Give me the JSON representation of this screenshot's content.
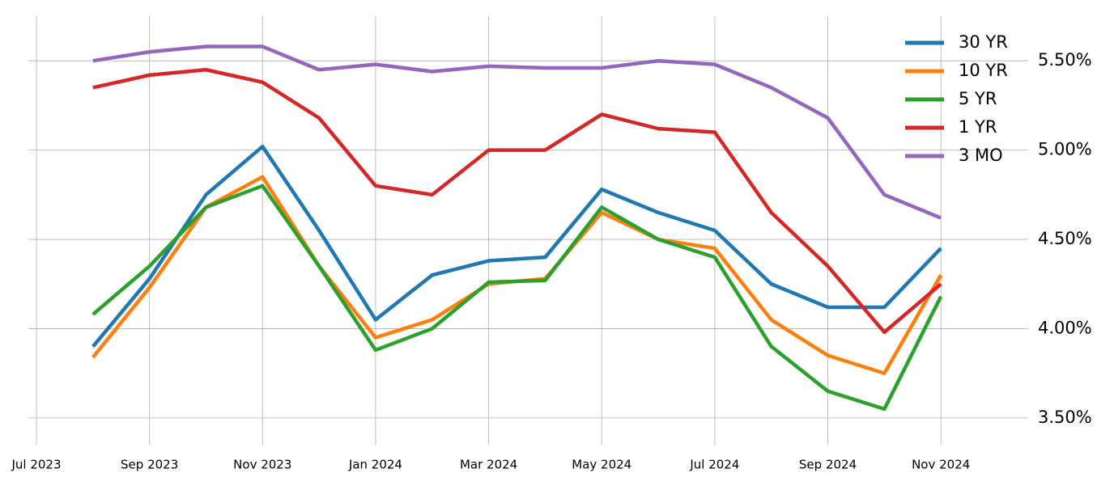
{
  "chart_data": {
    "type": "line",
    "x": [
      "2023-08",
      "2023-09",
      "2023-10",
      "2023-11",
      "2023-12",
      "2024-01",
      "2024-02",
      "2024-03",
      "2024-04",
      "2024-05",
      "2024-06",
      "2024-07",
      "2024-08",
      "2024-09",
      "2024-10",
      "2024-11"
    ],
    "series": [
      {
        "name": "30 YR",
        "color": "#1f77b4",
        "values": [
          3.9,
          4.28,
          4.75,
          5.02,
          4.55,
          4.05,
          4.3,
          4.38,
          4.4,
          4.78,
          4.65,
          4.55,
          4.25,
          4.12,
          4.12,
          4.45
        ]
      },
      {
        "name": "10 YR",
        "color": "#ff7f0e",
        "values": [
          3.84,
          4.23,
          4.68,
          4.85,
          4.35,
          3.95,
          4.05,
          4.25,
          4.28,
          4.65,
          4.5,
          4.45,
          4.05,
          3.85,
          3.75,
          4.3
        ]
      },
      {
        "name": "5 YR",
        "color": "#2ca02c",
        "values": [
          4.08,
          4.35,
          4.68,
          4.8,
          4.35,
          3.88,
          4.0,
          4.26,
          4.27,
          4.68,
          4.5,
          4.4,
          3.9,
          3.65,
          3.55,
          4.18
        ]
      },
      {
        "name": "1 YR",
        "color": "#d62728",
        "values": [
          5.35,
          5.42,
          5.45,
          5.38,
          5.18,
          4.8,
          4.75,
          5.0,
          5.0,
          5.2,
          5.12,
          5.1,
          4.65,
          4.35,
          3.98,
          4.25
        ]
      },
      {
        "name": "3 MO",
        "color": "#9467bd",
        "values": [
          5.5,
          5.55,
          5.58,
          5.58,
          5.45,
          5.48,
          5.44,
          5.47,
          5.46,
          5.46,
          5.5,
          5.48,
          5.35,
          5.18,
          4.75,
          4.62
        ]
      }
    ],
    "xlim": [
      "2023-07",
      "2024-12"
    ],
    "xticks": [
      {
        "value": "2023-07",
        "label": "Jul 2023"
      },
      {
        "value": "2023-09",
        "label": "Sep 2023"
      },
      {
        "value": "2023-11",
        "label": "Nov 2023"
      },
      {
        "value": "2024-01",
        "label": "Jan 2024"
      },
      {
        "value": "2024-03",
        "label": "Mar 2024"
      },
      {
        "value": "2024-05",
        "label": "May 2024"
      },
      {
        "value": "2024-07",
        "label": "Jul 2024"
      },
      {
        "value": "2024-09",
        "label": "Sep 2024"
      },
      {
        "value": "2024-11",
        "label": "Nov 2024"
      }
    ],
    "ylim": [
      3.35,
      5.75
    ],
    "yticks": [
      {
        "value": 3.5,
        "label": "3.50%"
      },
      {
        "value": 4.0,
        "label": "4.00%"
      },
      {
        "value": 4.5,
        "label": "4.50%"
      },
      {
        "value": 5.0,
        "label": "5.00%"
      },
      {
        "value": 5.5,
        "label": "5.50%"
      }
    ],
    "grid": true,
    "y_axis_side": "right",
    "legend": "upper right"
  }
}
